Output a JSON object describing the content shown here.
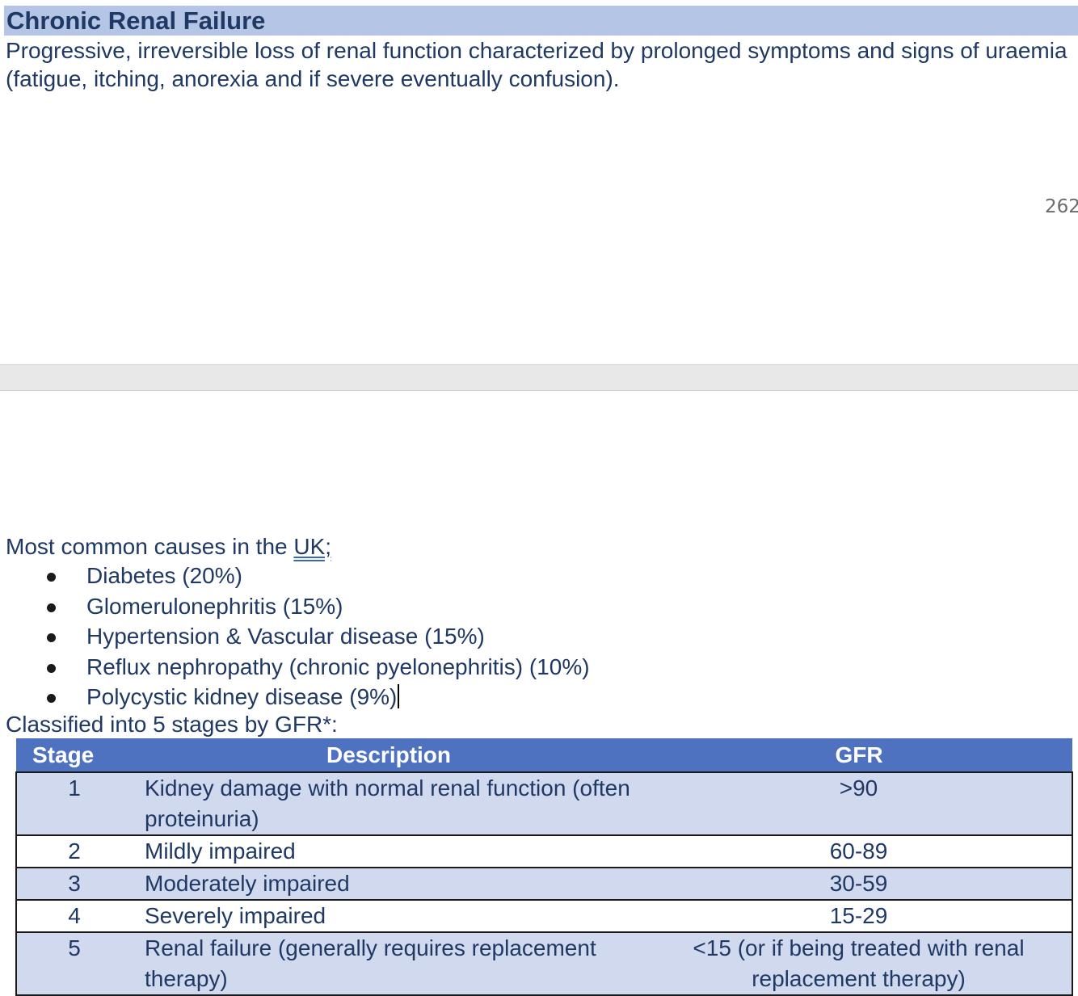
{
  "section_title": "Chronic Renal Failure",
  "intro_text": "Progressive, irreversible loss of renal function characterized by prolonged symptoms and signs of uraemia (fatigue, itching, anorexia and if severe eventually confusion).",
  "page_number": "262",
  "causes": {
    "intro_prefix": "Most common causes in the ",
    "intro_link": "UK;",
    "items": [
      "Diabetes (20%)",
      "Glomerulonephritis (15%)",
      "Hypertension & Vascular disease (15%)",
      "Reflux nephropathy (chronic pyelonephritis) (10%)",
      "Polycystic kidney disease (9%)"
    ]
  },
  "classification_text": "Classified into 5 stages by GFR*:",
  "stages_table": {
    "headers": [
      "Stage",
      "Description",
      "GFR"
    ],
    "rows": [
      {
        "stage": "1",
        "description": "Kidney damage with normal renal function (often proteinuria)",
        "gfr": ">90"
      },
      {
        "stage": "2",
        "description": "Mildly impaired",
        "gfr": "60-89"
      },
      {
        "stage": "3",
        "description": "Moderately impaired",
        "gfr": "30-59"
      },
      {
        "stage": "4",
        "description": "Severely impaired",
        "gfr": "15-29"
      },
      {
        "stage": "5",
        "description": "Renal failure (generally requires replacement therapy)",
        "gfr": "<15 (or if being treated with renal replacement therapy)"
      }
    ]
  },
  "colors": {
    "heading_background": "#b4c5e5",
    "text": "#1f3864",
    "table_header": "#4f72c0",
    "table_shaded_row": "#d0d9ee"
  }
}
